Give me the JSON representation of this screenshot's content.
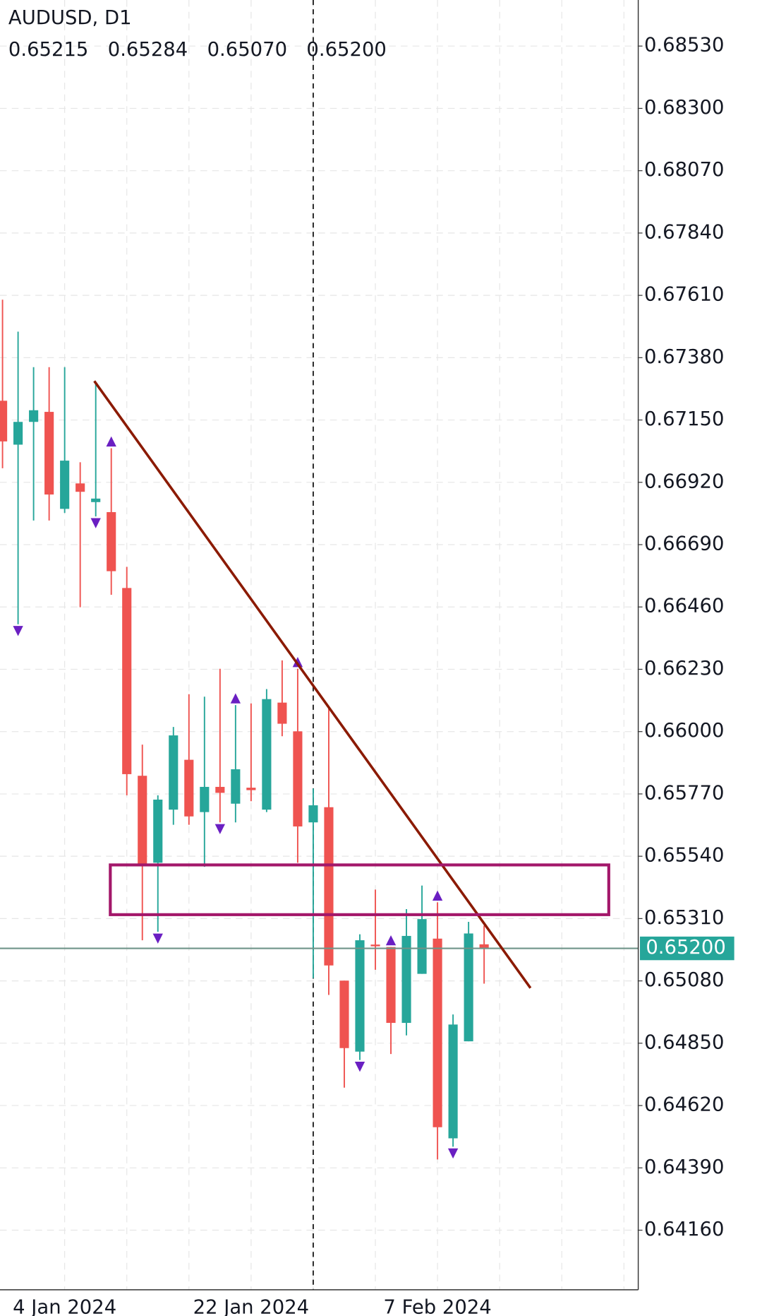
{
  "chart_data": {
    "type": "candlestick",
    "title": "AUDUSD, D1",
    "header_values": [
      {
        "value": 0.65215,
        "label": "0.65215"
      },
      {
        "value": 0.65284,
        "label": "0.65284"
      },
      {
        "value": 0.6507,
        "label": "0.65070"
      },
      {
        "value": 0.652,
        "label": "0.65200"
      }
    ],
    "categories": [
      null,
      null,
      null,
      null,
      "4 Jan 2024",
      null,
      null,
      null,
      null,
      null,
      null,
      null,
      null,
      null,
      null,
      null,
      "22 Jan 2024",
      null,
      null,
      null,
      null,
      null,
      null,
      null,
      null,
      null,
      null,
      null,
      "7 Feb 2024",
      null,
      null,
      null
    ],
    "open": [
      0.67221,
      0.67059,
      0.67143,
      0.6718,
      0.66822,
      0.66916,
      0.66847,
      0.6681,
      0.6653,
      0.65837,
      0.65516,
      0.65712,
      0.65896,
      0.65703,
      0.65796,
      0.65734,
      0.65793,
      0.65712,
      0.66107,
      0.66001,
      0.65665,
      0.65721,
      0.65081,
      0.64819,
      0.65214,
      0.65205,
      0.64925,
      0.65106,
      0.65236,
      0.64499,
      0.64857,
      0.65215
    ],
    "high": [
      0.67594,
      0.67476,
      0.67345,
      0.67345,
      0.67345,
      0.66994,
      0.67283,
      0.67046,
      0.66608,
      0.65952,
      0.65765,
      0.66017,
      0.66138,
      0.66129,
      0.66232,
      0.66098,
      0.66104,
      0.66157,
      0.66263,
      0.66232,
      0.6579,
      0.66085,
      0.65081,
      0.65252,
      0.65417,
      0.65205,
      0.65345,
      0.65432,
      0.6537,
      0.64956,
      0.65298,
      0.65284
    ],
    "low": [
      0.66972,
      0.66396,
      0.66779,
      0.66779,
      0.66807,
      0.66459,
      0.66794,
      0.66505,
      0.65765,
      0.6523,
      0.65261,
      0.65656,
      0.65656,
      0.65501,
      0.65665,
      0.65665,
      0.65743,
      0.65703,
      0.65983,
      0.65516,
      0.6509,
      0.65028,
      0.64686,
      0.64788,
      0.65121,
      0.6481,
      0.64879,
      0.65106,
      0.64421,
      0.64468,
      0.64857,
      0.6507
    ],
    "close": [
      0.67071,
      0.67143,
      0.67186,
      0.66875,
      0.67,
      0.66885,
      0.6686,
      0.66592,
      0.65843,
      0.6551,
      0.65749,
      0.65986,
      0.65687,
      0.65796,
      0.65774,
      0.65861,
      0.65784,
      0.6612,
      0.66029,
      0.6565,
      0.65728,
      0.65137,
      0.64832,
      0.6523,
      0.65208,
      0.64925,
      0.65246,
      0.65308,
      0.6454,
      0.64919,
      0.65255,
      0.652
    ],
    "up_color": "#26a69a",
    "down_color": "#ef5350",
    "ylim": [
      0.6394,
      0.687
    ],
    "yticks": [
      {
        "value": 0.6853,
        "label": "0.68530"
      },
      {
        "value": 0.683,
        "label": "0.68300"
      },
      {
        "value": 0.6807,
        "label": "0.68070"
      },
      {
        "value": 0.6784,
        "label": "0.67840"
      },
      {
        "value": 0.6761,
        "label": "0.67610"
      },
      {
        "value": 0.6738,
        "label": "0.67380"
      },
      {
        "value": 0.6715,
        "label": "0.67150"
      },
      {
        "value": 0.6692,
        "label": "0.66920"
      },
      {
        "value": 0.6669,
        "label": "0.66690"
      },
      {
        "value": 0.6646,
        "label": "0.66460"
      },
      {
        "value": 0.6623,
        "label": "0.66230"
      },
      {
        "value": 0.66,
        "label": "0.66000"
      },
      {
        "value": 0.6577,
        "label": "0.65770"
      },
      {
        "value": 0.6554,
        "label": "0.65540"
      },
      {
        "value": 0.6531,
        "label": "0.65310"
      },
      {
        "value": 0.6508,
        "label": "0.65080"
      },
      {
        "value": 0.6485,
        "label": "0.64850"
      },
      {
        "value": 0.6462,
        "label": "0.64620"
      },
      {
        "value": 0.6439,
        "label": "0.64390"
      },
      {
        "value": 0.6416,
        "label": "0.64160"
      }
    ],
    "grid": true
  }
}
